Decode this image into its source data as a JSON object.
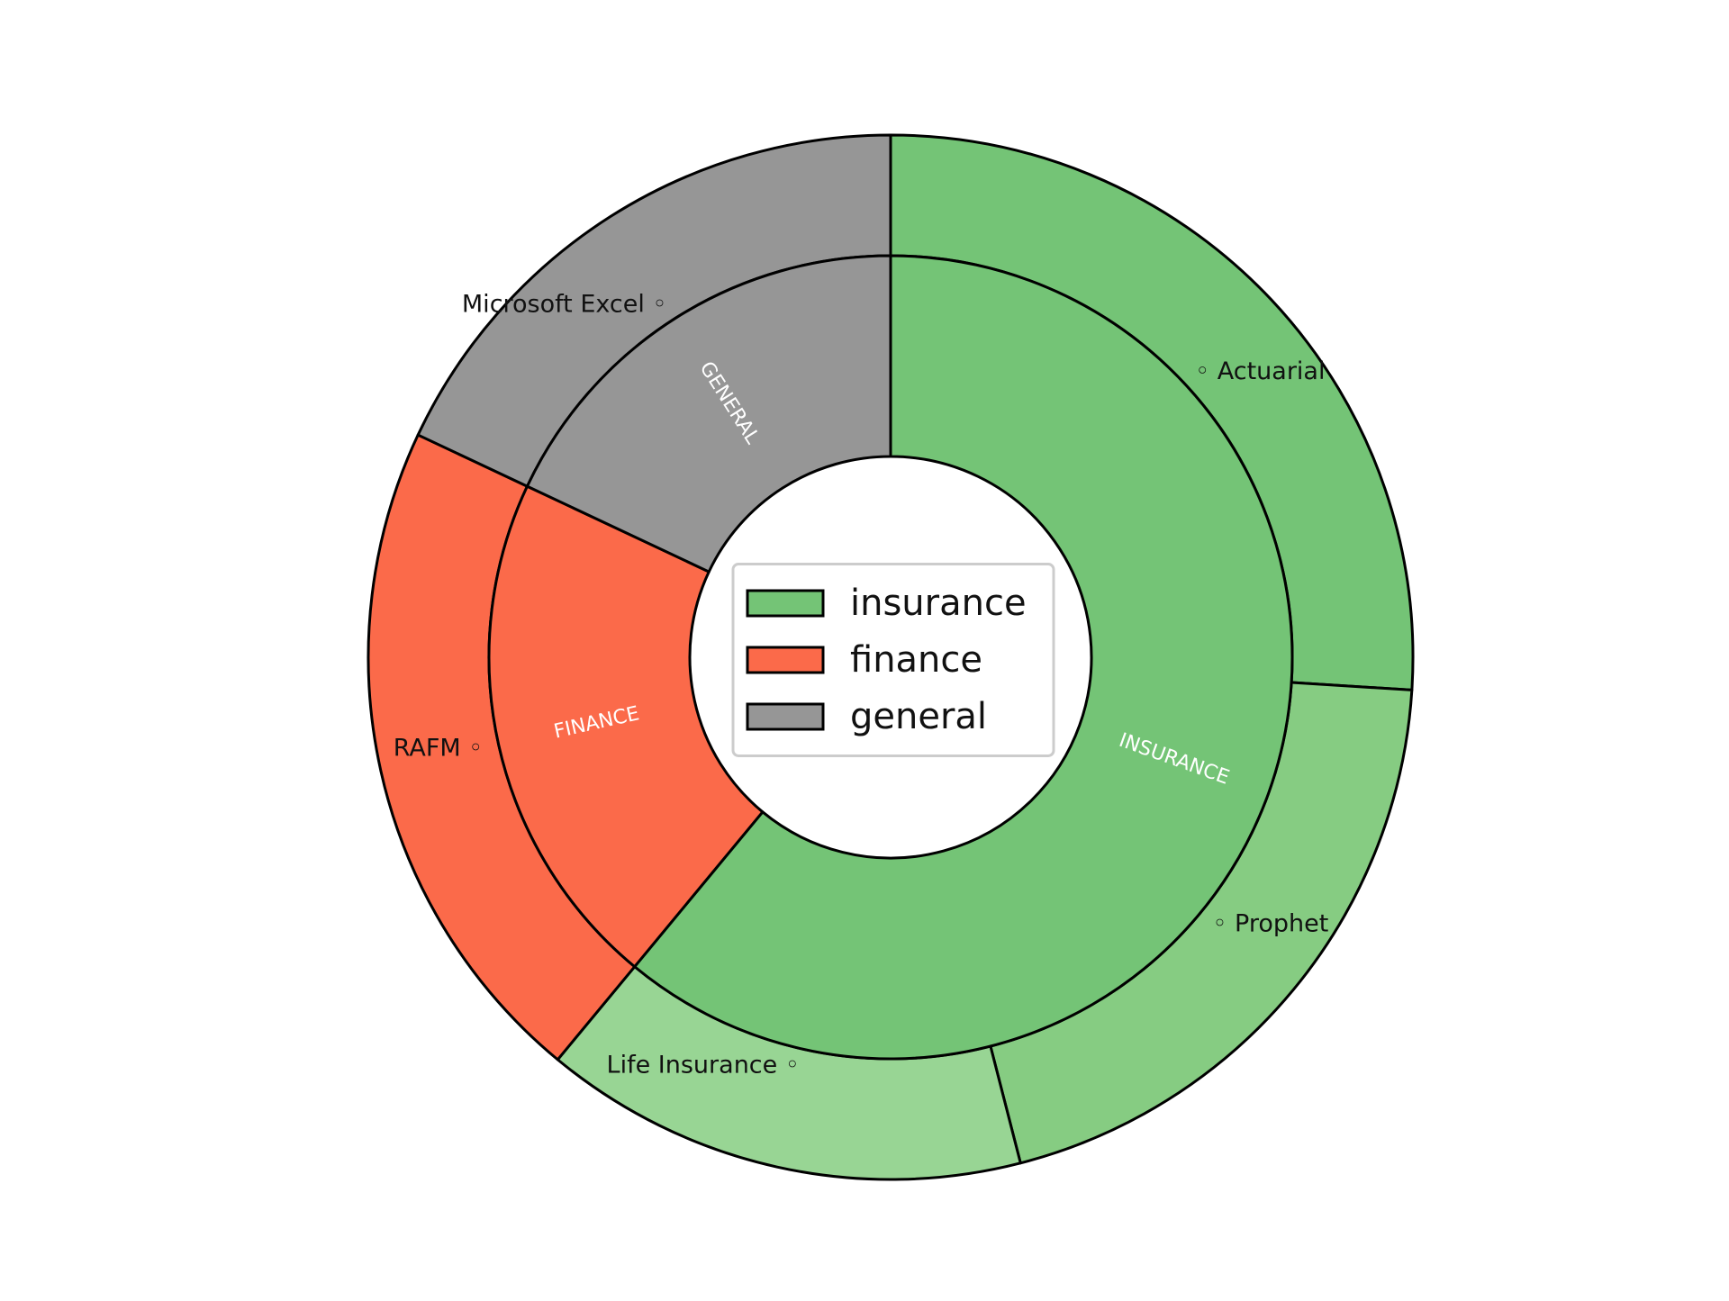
{
  "chart_data": {
    "type": "pie",
    "variant": "nested-donut",
    "title": "",
    "inner_ring": {
      "categories": [
        "INSURANCE",
        "FINANCE",
        "GENERAL"
      ],
      "values": [
        61,
        21,
        18
      ],
      "colors": [
        "#74c476",
        "#fb6a4a",
        "#969696"
      ]
    },
    "outer_ring": {
      "categories": [
        "Actuarial",
        "Prophet",
        "Life Insurance",
        "RAFM",
        "Microsoft Excel"
      ],
      "values": [
        26,
        20,
        15,
        21,
        18
      ],
      "colors": [
        "#74c476",
        "#86cc82",
        "#98d594",
        "#fb6a4a",
        "#969696"
      ],
      "label_texts": [
        "◦ Actuarial",
        "◦ Prophet",
        "Life Insurance ◦",
        "RAFM ◦",
        "Microsoft Excel ◦"
      ]
    },
    "legend": {
      "position": "center",
      "entries": [
        {
          "label": "insurance",
          "color": "#74c476"
        },
        {
          "label": "finance",
          "color": "#fb6a4a"
        },
        {
          "label": "general",
          "color": "#969696"
        }
      ]
    },
    "start_angle": 90,
    "direction": "clockwise"
  }
}
